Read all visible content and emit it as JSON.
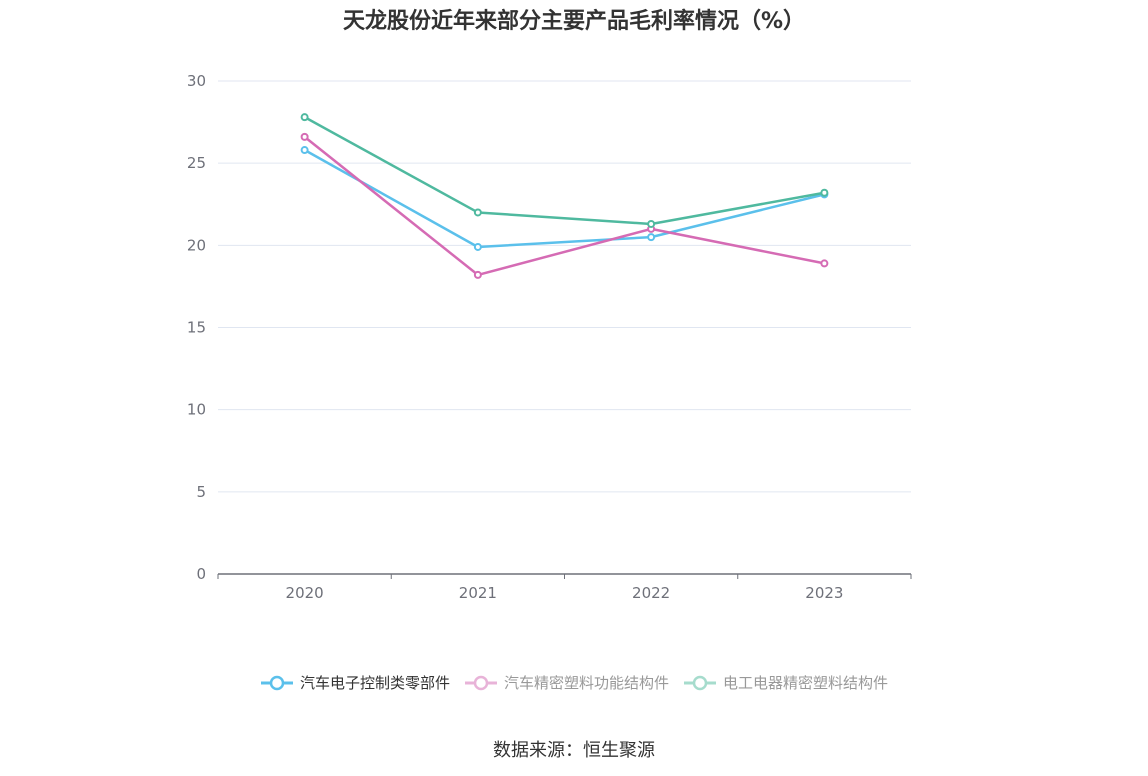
{
  "title": "天龙股份近年来部分主要产品毛利率情况（%）",
  "source": "数据来源：恒生聚源",
  "colors": {
    "axis": "#6e7079",
    "grid": "#e0e6f1",
    "tick_text": "#6e7079",
    "legend_text_active": "#333333",
    "legend_text_faded": "#999999"
  },
  "chart_data": {
    "type": "line",
    "title": "天龙股份近年来部分主要产品毛利率情况（%）",
    "xlabel": "",
    "ylabel": "",
    "categories": [
      "2020",
      "2021",
      "2022",
      "2023"
    ],
    "ylim": [
      0,
      30
    ],
    "yticks": [
      0,
      5,
      10,
      15,
      20,
      25,
      30
    ],
    "grid": true,
    "legend_position": "bottom",
    "series": [
      {
        "name": "汽车电子控制类零部件",
        "color": "#5bc0eb",
        "legend_color": "#5bc0eb",
        "legend_faded": false,
        "values": [
          25.8,
          19.9,
          20.5,
          23.1
        ]
      },
      {
        "name": "汽车精密塑料功能结构件",
        "color": "#d56bb4",
        "legend_color": "#e8b3d8",
        "legend_faded": true,
        "values": [
          26.6,
          18.2,
          21.0,
          18.9
        ]
      },
      {
        "name": "电工电器精密塑料结构件",
        "color": "#4fb99f",
        "legend_color": "#a6dccd",
        "legend_faded": true,
        "values": [
          27.8,
          22.0,
          21.3,
          23.2
        ]
      }
    ]
  }
}
